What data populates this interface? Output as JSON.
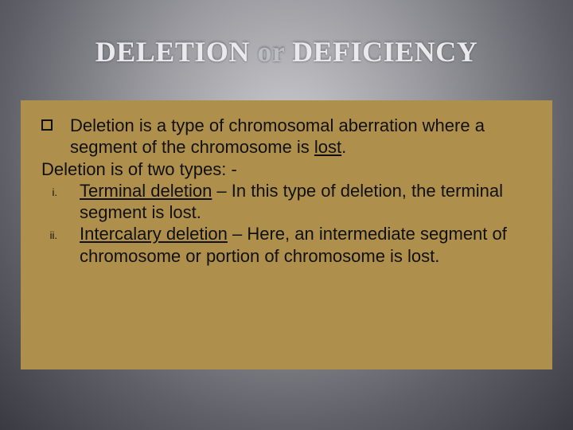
{
  "background": {
    "gradient_center": "#c8c8cc",
    "gradient_mid": "#9a9aa0",
    "gradient_outer": "#606068",
    "gradient_edge": "#3a3a42"
  },
  "title": {
    "text_a": "DELETION",
    "text_or": "or",
    "text_b": "DEFICIENCY",
    "font_family": "Georgia",
    "font_size_pt": 27,
    "font_weight": 700,
    "color_main": "#e9e9ee",
    "color_or": "#bcbcc4",
    "shadow_color": "rgba(100,100,108,0.55)"
  },
  "card": {
    "bg_color": "#ae8f4c",
    "text_color": "#111111",
    "font_family": "Verdana",
    "font_size_pt": 17,
    "intro_a": "Deletion is a type of chromosomal aberration where a segment of the chromosome is ",
    "intro_underlined": "lost",
    "intro_b": ".",
    "types_line": "Deletion is of two types: -",
    "items": [
      {
        "roman": "i.",
        "term": "Terminal deletion",
        "rest": " – In this type of deletion, the terminal segment is lost."
      },
      {
        "roman": "ii.",
        "term": "Intercalary deletion",
        "rest": " – Here, an intermediate segment of chromosome or portion of chromosome is lost."
      }
    ]
  }
}
